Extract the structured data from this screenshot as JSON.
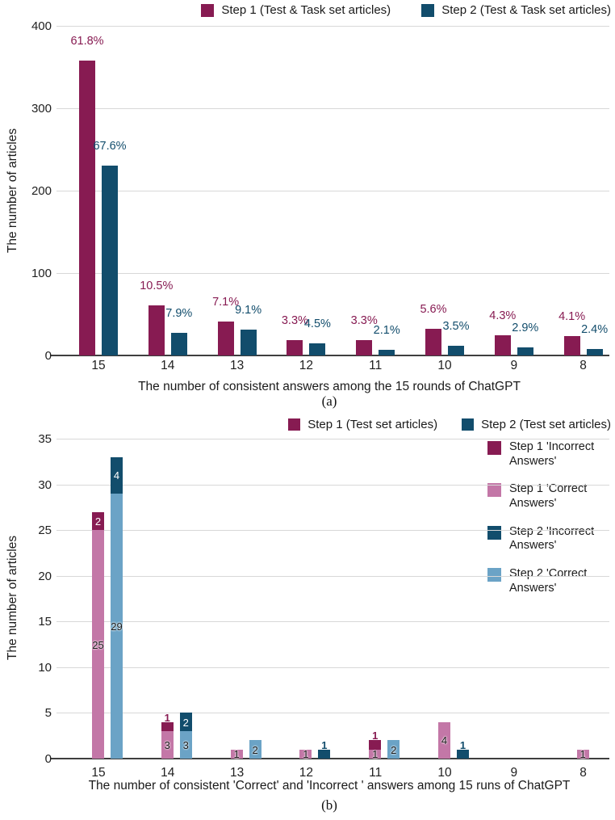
{
  "chart_data": [
    {
      "id": "a",
      "type": "bar",
      "caption": "(a)",
      "xlabel": "The number of consistent answers among the 15 rounds of ChatGPT",
      "ylabel": "The number of articles",
      "ylim": [
        0,
        400
      ],
      "yticks": [
        0,
        100,
        200,
        300,
        400
      ],
      "categories": [
        "15",
        "14",
        "13",
        "12",
        "11",
        "10",
        "9",
        "8"
      ],
      "grid": true,
      "legend_position": "top-right",
      "series": [
        {
          "name": "Step 1 (Test & Task set articles)",
          "color": "#871B52",
          "values": [
            358,
            61,
            41,
            19,
            19,
            32,
            25,
            24
          ],
          "percent_labels": [
            "61.8%",
            "10.5%",
            "7.1%",
            "3.3%",
            "3.3%",
            "5.6%",
            "4.3%",
            "4.1%"
          ]
        },
        {
          "name": "Step 2 (Test & Task set articles)",
          "color": "#124D6C",
          "values": [
            230,
            27,
            31,
            15,
            7,
            12,
            10,
            8
          ],
          "percent_labels": [
            "67.6%",
            "7.9%",
            "9.1%",
            "4.5%",
            "2.1%",
            "3.5%",
            "2.9%",
            "2.4%"
          ]
        }
      ]
    },
    {
      "id": "b",
      "type": "stacked-bar",
      "caption": "(b)",
      "xlabel": "The number of consistent 'Correct' and 'Incorrect ' answers among 15 runs of ChatGPT",
      "ylabel": "The number of articles",
      "ylim": [
        0,
        35
      ],
      "yticks": [
        0,
        5,
        10,
        15,
        20,
        25,
        30,
        35
      ],
      "categories": [
        "15",
        "14",
        "13",
        "12",
        "11",
        "10",
        "9",
        "8"
      ],
      "grid": true,
      "legend_position": "top-right",
      "legend": [
        {
          "name": "Step 1 (Test set articles)",
          "color": "#871B52"
        },
        {
          "name": "Step 2 (Test set articles)",
          "color": "#124D6C"
        }
      ],
      "stacks": [
        {
          "group": "Step 1",
          "segments": [
            {
              "name": "Step 1 'Correct Answers'",
              "color": "#C377A7",
              "values": [
                25,
                3,
                1,
                1,
                1,
                4,
                0,
                1
              ]
            },
            {
              "name": "Step 1 'Incorrect Answers'",
              "color": "#871B52",
              "values": [
                2,
                1,
                0,
                0,
                1,
                0,
                0,
                0
              ]
            }
          ]
        },
        {
          "group": "Step 2",
          "segments": [
            {
              "name": "Step 2 'Correct Answers'",
              "color": "#6BA3C6",
              "values": [
                29,
                3,
                2,
                0,
                2,
                0,
                0,
                0
              ]
            },
            {
              "name": "Step 2 'Incorrect Answers'",
              "color": "#124D6C",
              "values": [
                4,
                2,
                0,
                1,
                0,
                1,
                0,
                0
              ]
            }
          ]
        }
      ],
      "sub_legend": [
        {
          "name": "Step 1 'Incorrect Answers'",
          "color": "#871B52"
        },
        {
          "name": "Step 1 'Correct Answers'",
          "color": "#C377A7"
        },
        {
          "name": "Step 2 'Incorrect Answers'",
          "color": "#124D6C"
        },
        {
          "name": "Step 2 'Correct Answers'",
          "color": "#6BA3C6"
        }
      ]
    }
  ]
}
